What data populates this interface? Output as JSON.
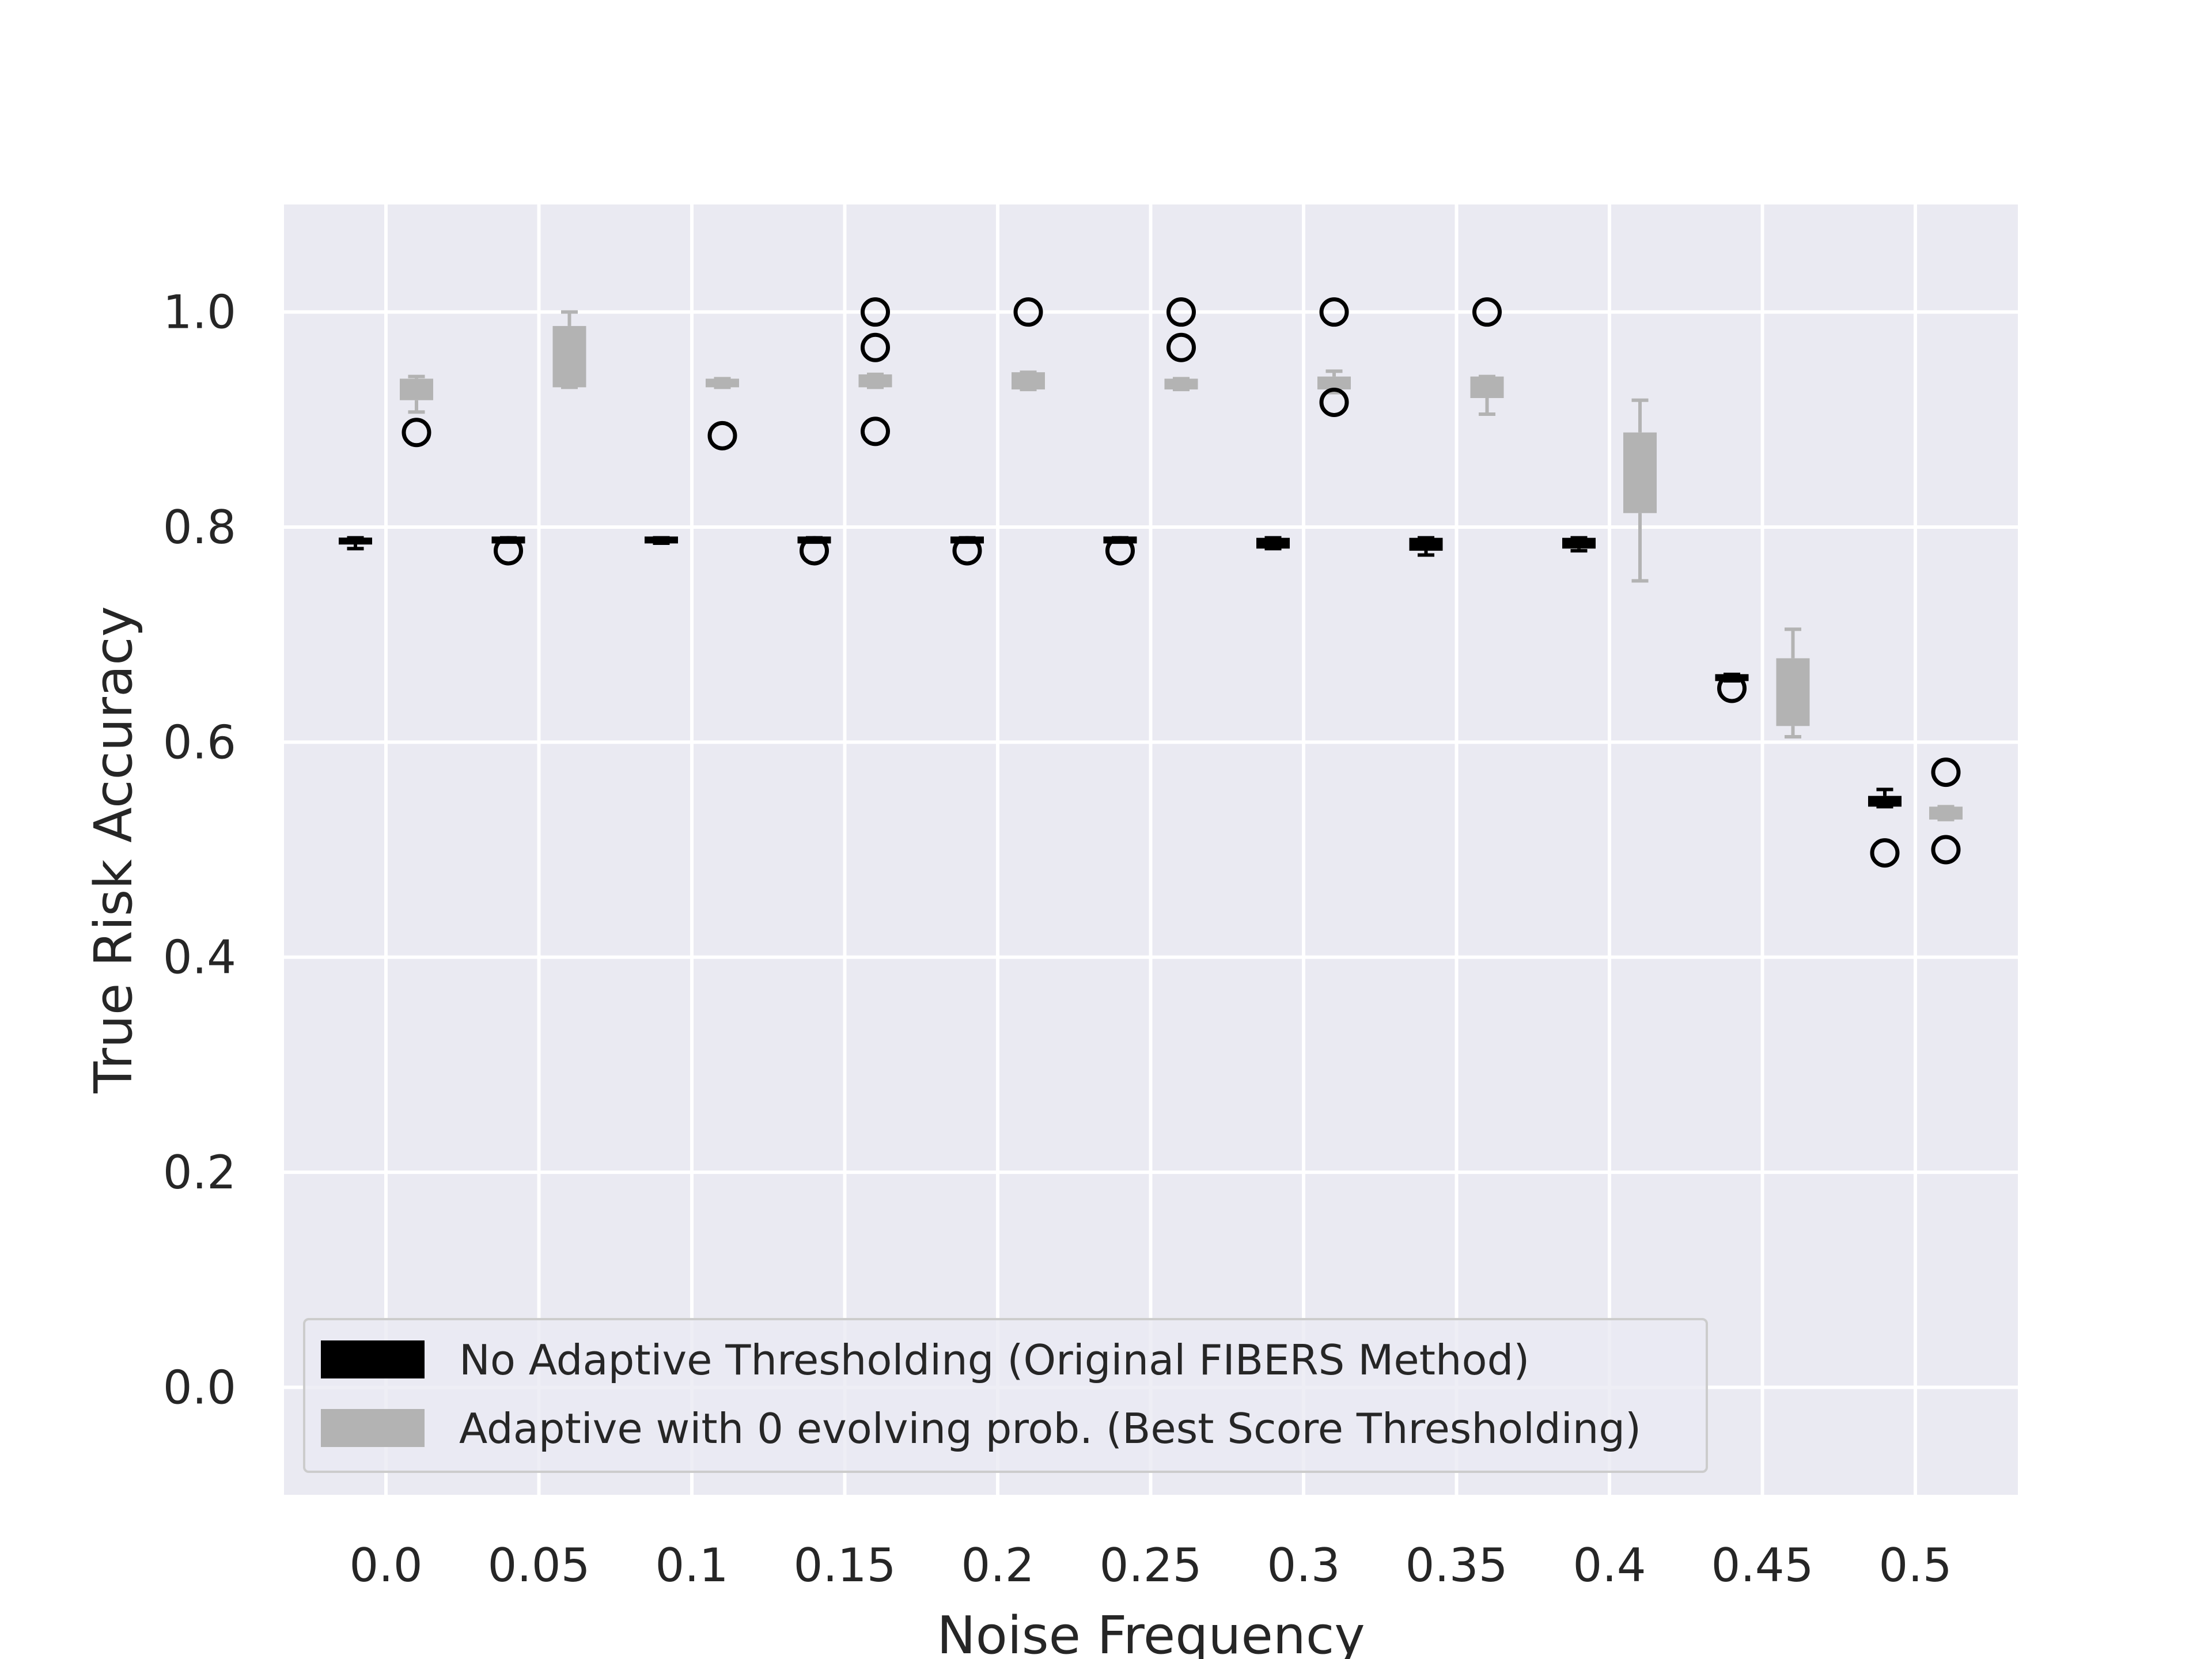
{
  "chart_data": {
    "type": "box",
    "title": "",
    "xlabel": "Noise Frequency",
    "ylabel": "True Risk Accuracy",
    "ylim": [
      -0.1,
      1.1
    ],
    "yticks": [
      "0.0",
      "0.2",
      "0.4",
      "0.6",
      "0.8",
      "1.0"
    ],
    "categories": [
      "0.0",
      "0.05",
      "0.1",
      "0.15",
      "0.2",
      "0.25",
      "0.3",
      "0.35",
      "0.4",
      "0.45",
      "0.5"
    ],
    "grid": true,
    "legend_position": "lower-left",
    "series": [
      {
        "name": "No Adaptive Thresholding (Original FIBERS Method)",
        "color": "#000000",
        "boxes": [
          {
            "whislo": 0.78,
            "q1": 0.784,
            "med": 0.787,
            "q3": 0.79,
            "whishi": 0.79,
            "fliers": []
          },
          {
            "whislo": 0.786,
            "q1": 0.786,
            "med": 0.788,
            "q3": 0.79,
            "whishi": 0.79,
            "fliers": [
              0.778
            ]
          },
          {
            "whislo": 0.785,
            "q1": 0.786,
            "med": 0.788,
            "q3": 0.79,
            "whishi": 0.79,
            "fliers": []
          },
          {
            "whislo": 0.786,
            "q1": 0.786,
            "med": 0.788,
            "q3": 0.79,
            "whishi": 0.79,
            "fliers": [
              0.778
            ]
          },
          {
            "whislo": 0.786,
            "q1": 0.786,
            "med": 0.788,
            "q3": 0.79,
            "whishi": 0.79,
            "fliers": [
              0.778
            ]
          },
          {
            "whislo": 0.786,
            "q1": 0.786,
            "med": 0.788,
            "q3": 0.79,
            "whishi": 0.79,
            "fliers": [
              0.778
            ]
          },
          {
            "whislo": 0.78,
            "q1": 0.78,
            "med": 0.785,
            "q3": 0.79,
            "whishi": 0.79,
            "fliers": []
          },
          {
            "whislo": 0.774,
            "q1": 0.778,
            "med": 0.784,
            "q3": 0.79,
            "whishi": 0.79,
            "fliers": []
          },
          {
            "whislo": 0.778,
            "q1": 0.78,
            "med": 0.785,
            "q3": 0.79,
            "whishi": 0.79,
            "fliers": []
          },
          {
            "whislo": 0.657,
            "q1": 0.657,
            "med": 0.66,
            "q3": 0.663,
            "whishi": 0.663,
            "fliers": [
              0.65
            ]
          },
          {
            "whislo": 0.54,
            "q1": 0.54,
            "med": 0.545,
            "q3": 0.55,
            "whishi": 0.556,
            "fliers": [
              0.497
            ]
          }
        ]
      },
      {
        "name": "Adaptive with 0 evolving prob. (Best Score Thresholding)",
        "color": "#b3b3b3",
        "boxes": [
          {
            "whislo": 0.907,
            "q1": 0.918,
            "med": 0.93,
            "q3": 0.938,
            "whishi": 0.94,
            "fliers": [
              0.888
            ]
          },
          {
            "whislo": 0.93,
            "q1": 0.93,
            "med": 0.94,
            "q3": 0.987,
            "whishi": 1.0,
            "fliers": []
          },
          {
            "whislo": 0.93,
            "q1": 0.93,
            "med": 0.934,
            "q3": 0.938,
            "whishi": 0.938,
            "fliers": [
              0.885
            ]
          },
          {
            "whislo": 0.93,
            "q1": 0.93,
            "med": 0.936,
            "q3": 0.942,
            "whishi": 0.942,
            "fliers": [
              1.0,
              0.967,
              0.889
            ]
          },
          {
            "whislo": 0.928,
            "q1": 0.928,
            "med": 0.935,
            "q3": 0.944,
            "whishi": 0.944,
            "fliers": [
              1.0
            ]
          },
          {
            "whislo": 0.928,
            "q1": 0.928,
            "med": 0.933,
            "q3": 0.938,
            "whishi": 0.938,
            "fliers": [
              1.0,
              0.967
            ]
          },
          {
            "whislo": 0.925,
            "q1": 0.928,
            "med": 0.935,
            "q3": 0.94,
            "whishi": 0.945,
            "fliers": [
              1.0,
              0.916
            ]
          },
          {
            "whislo": 0.905,
            "q1": 0.92,
            "med": 0.93,
            "q3": 0.94,
            "whishi": 0.94,
            "fliers": [
              1.0
            ]
          },
          {
            "whislo": 0.75,
            "q1": 0.813,
            "med": 0.85,
            "q3": 0.888,
            "whishi": 0.918,
            "fliers": []
          },
          {
            "whislo": 0.605,
            "q1": 0.615,
            "med": 0.64,
            "q3": 0.678,
            "whishi": 0.705,
            "fliers": []
          },
          {
            "whislo": 0.528,
            "q1": 0.528,
            "med": 0.533,
            "q3": 0.54,
            "whishi": 0.54,
            "fliers": [
              0.572,
              0.5
            ]
          }
        ]
      }
    ]
  }
}
